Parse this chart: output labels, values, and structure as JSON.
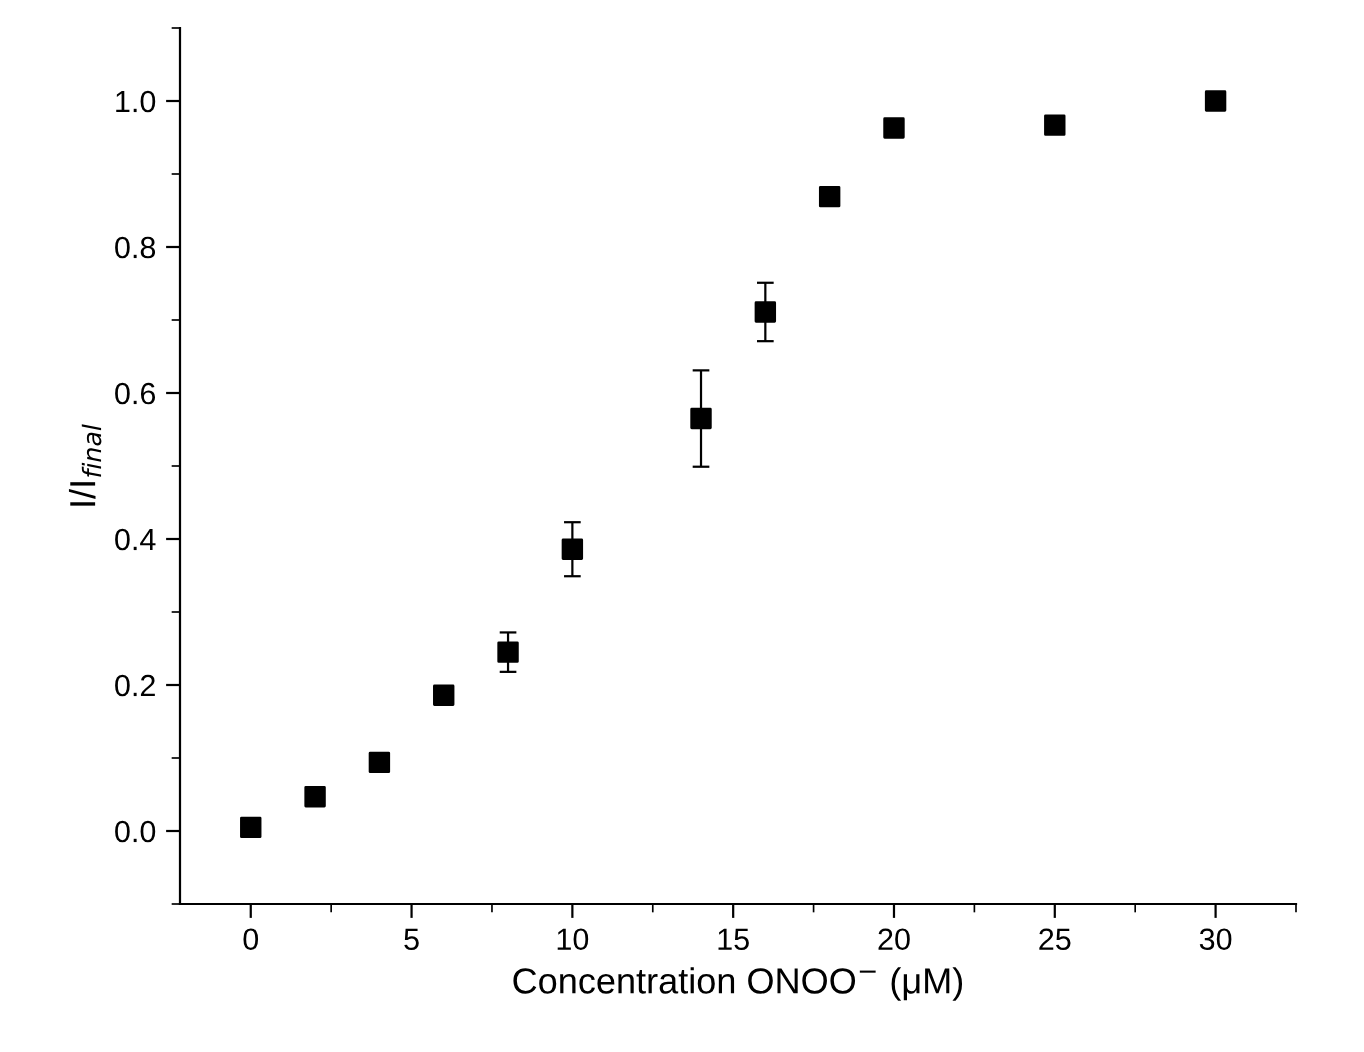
{
  "chart_data": {
    "type": "scatter",
    "xlabel": "Concentration ONOO$^{−}$ (μM)",
    "ylabel": "I/I$_{final}$",
    "x": [
      0,
      2,
      4,
      6,
      8,
      10,
      14,
      16,
      18,
      20,
      25,
      30
    ],
    "series": [
      {
        "color": "#000000",
        "values": [
          0.005,
          0.047,
          0.094,
          0.186,
          0.245,
          0.386,
          0.565,
          0.711,
          0.869,
          0.963,
          0.967,
          1.0
        ],
        "errors": [
          null,
          null,
          null,
          null,
          0.027,
          0.037,
          0.066,
          0.04,
          null,
          null,
          null,
          null
        ]
      }
    ],
    "xlim": [
      -2.2,
      32.5
    ],
    "ylim": [
      -0.1,
      1.1
    ],
    "xticks": [
      0,
      5,
      10,
      15,
      20,
      25,
      30
    ],
    "yticks": [
      {
        "value": 0,
        "label": "0.0"
      },
      {
        "value": 0.2,
        "label": "0.2"
      },
      {
        "value": 0.4,
        "label": "0.4"
      },
      {
        "value": 0.6,
        "label": "0.6"
      },
      {
        "value": 0.8,
        "label": "0.8"
      },
      {
        "value": 1.0,
        "label": "1.0"
      }
    ],
    "marker": "square",
    "grid": false,
    "legend": false
  }
}
